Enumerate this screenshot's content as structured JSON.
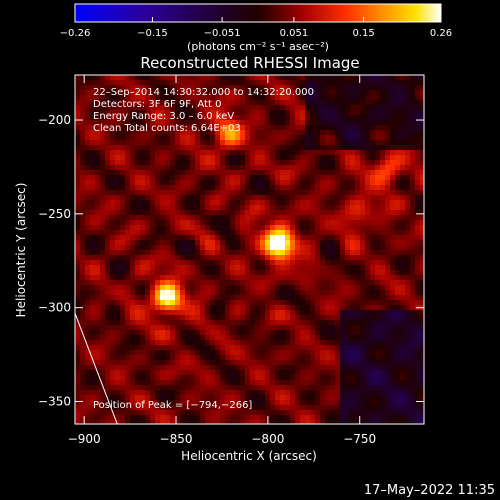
{
  "chart_data": {
    "type": "heatmap",
    "title": "Reconstructed RHESSI Image",
    "xlabel": "Heliocentric X (arcsec)",
    "ylabel": "Heliocentric Y (arcsec)",
    "xlim": [
      -905,
      -715
    ],
    "ylim": [
      -362,
      -176
    ],
    "x_ticks": [
      -900,
      -850,
      -800,
      -750
    ],
    "x_tick_labels": [
      "−900",
      "−850",
      "−800",
      "−750"
    ],
    "y_ticks": [
      -200,
      -250,
      -300,
      -350
    ],
    "y_tick_labels": [
      "−200",
      "−250",
      "−300",
      "−350"
    ],
    "colorbar": {
      "range": [
        -0.26,
        0.26
      ],
      "ticks": [
        -0.26,
        -0.15,
        -0.051,
        0.051,
        0.15,
        0.26
      ],
      "tick_labels": [
        "−0.26",
        "−0.15",
        "−0.051",
        "0.051",
        "0.15",
        "0.26"
      ],
      "units": "(photons cm⁻² s⁻¹ asec⁻²)",
      "colors": [
        "#0000ff",
        "#2a00a0",
        "#200020",
        "#200000",
        "#a00000",
        "#ff3000",
        "#ff9000",
        "#ffe000",
        "#ffffff"
      ]
    },
    "annotations": [
      "22–Sep–2014 14:30:32.000 to 14:32:20.000",
      "Detectors: 3F 6F 9F, Att 0",
      "Energy Range: 3.0 – 6.0 keV",
      "Clean     Total counts: 6.64E+03"
    ],
    "peak_label": "Position of Peak = [−794,−266]",
    "sources": [
      {
        "x": -794,
        "y": -266,
        "value": 0.26
      },
      {
        "x": -855,
        "y": -295,
        "value": 0.22
      },
      {
        "x": -822,
        "y": -207,
        "value": 0.13
      },
      {
        "x": -735,
        "y": -226,
        "value": 0.11
      },
      {
        "x": -750,
        "y": -250,
        "value": 0.08
      }
    ],
    "limb_line": {
      "x": [
        -905,
        -882
      ],
      "y": [
        -303,
        -362
      ]
    }
  },
  "footer": {
    "timestamp": "17–May–2022 11:35"
  }
}
